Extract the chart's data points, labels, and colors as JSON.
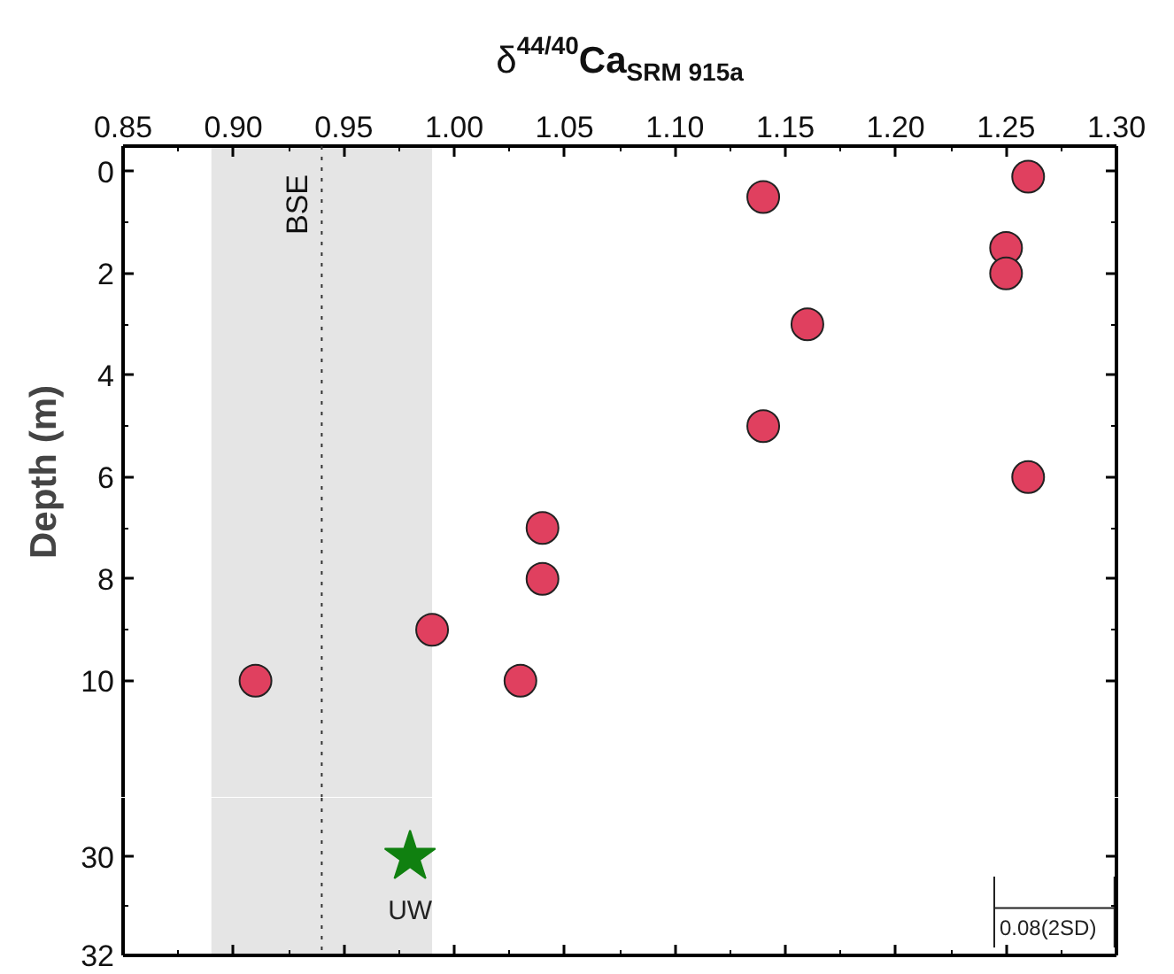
{
  "chart_data": [
    {
      "type": "scatter",
      "xlabel": "δ$^{44/40}$Ca$_{SRM 915a}$",
      "ylabel": "Depth (m)",
      "xlim": [
        0.85,
        1.3
      ],
      "xticks": [
        {
          "value": 0.85,
          "label": "0.85"
        },
        {
          "value": 0.9,
          "label": "0.90"
        },
        {
          "value": 0.95,
          "label": "0.95"
        },
        {
          "value": 1.0,
          "label": "1.00"
        },
        {
          "value": 1.05,
          "label": "1.05"
        },
        {
          "value": 1.1,
          "label": "1.10"
        },
        {
          "value": 1.15,
          "label": "1.15"
        },
        {
          "value": 1.2,
          "label": "1.20"
        },
        {
          "value": 1.25,
          "label": "1.25"
        },
        {
          "value": 1.3,
          "label": "1.30"
        }
      ],
      "ylim": [
        12.3,
        -0.5
      ],
      "yticks": [
        0,
        2,
        4,
        6,
        8,
        10
      ],
      "grid": false,
      "marker": "circle",
      "x": [
        1.26,
        1.14,
        1.25,
        1.25,
        1.16,
        1.14,
        1.26,
        1.04,
        1.04,
        0.99,
        0.91,
        1.03
      ],
      "series": [
        {
          "color": "#e0405f",
          "values": [
            0.1,
            0.5,
            1.5,
            2,
            3,
            5,
            6,
            7,
            8,
            9,
            10,
            10
          ]
        }
      ],
      "bands": [
        {
          "axis": "x",
          "from": 0.89,
          "to": 0.99,
          "color": "#e5e5e5"
        }
      ],
      "ref_lines": [
        {
          "axis": "x",
          "value": 0.94,
          "label": "BSE",
          "line_style": "dotted",
          "color": "#333333"
        }
      ]
    },
    {
      "type": "scatter",
      "xlim": [
        0.85,
        1.3
      ],
      "xticks": [
        {
          "value": 0.85,
          "label": null
        },
        {
          "value": 0.9,
          "label": null
        },
        {
          "value": 0.95,
          "label": null
        },
        {
          "value": 1.0,
          "label": null
        },
        {
          "value": 1.05,
          "label": null
        },
        {
          "value": 1.1,
          "label": null
        },
        {
          "value": 1.15,
          "label": null
        },
        {
          "value": 1.2,
          "label": null
        },
        {
          "value": 1.25,
          "label": null
        },
        {
          "value": 1.3,
          "label": null
        }
      ],
      "ylim": [
        32,
        28.8
      ],
      "yticks": [
        30,
        32
      ],
      "tick_labels": "y",
      "grid": false,
      "marker": "star",
      "x": [
        0.98
      ],
      "series": [
        {
          "name": "UW",
          "color": "#108010",
          "values": [
            30
          ]
        }
      ],
      "bands": [
        {
          "axis": "x",
          "from": 0.89,
          "to": 0.99,
          "color": "#e5e5e5"
        }
      ],
      "ref_lines": [
        {
          "axis": "x",
          "value": 0.94,
          "line_style": "dotted",
          "color": "#333333"
        }
      ],
      "annotations": [
        "0.08(2SD)"
      ]
    }
  ]
}
